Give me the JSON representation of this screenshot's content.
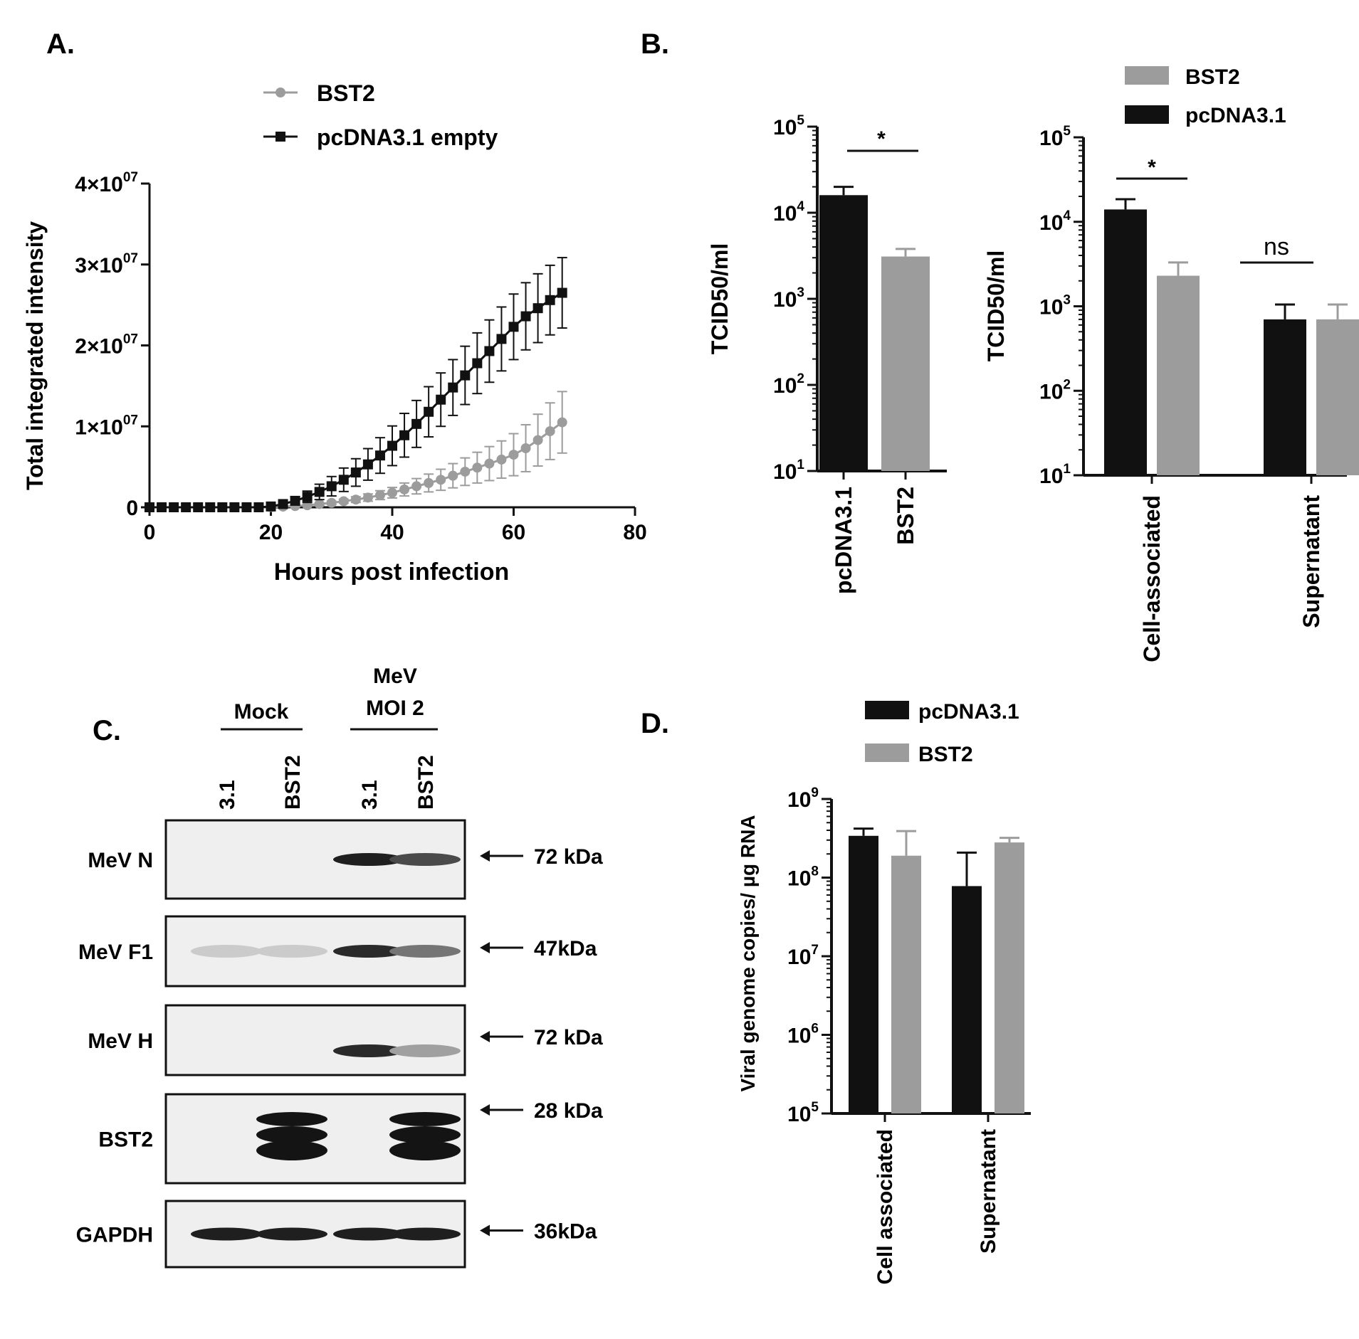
{
  "colors": {
    "black": "#111111",
    "gray": "#9c9c9c",
    "axis": "#111111"
  },
  "panel_labels": {
    "a": "A.",
    "b": "B.",
    "c": "C.",
    "d": "D."
  },
  "chart_data": [
    {
      "panel": "A",
      "type": "line",
      "xlabel": "Hours post infection",
      "ylabel": "Total integrated intensity",
      "xlim": [
        0,
        80
      ],
      "ylim": [
        0,
        40000000
      ],
      "xticks": [
        "0",
        "20",
        "40",
        "60",
        "80"
      ],
      "yticks": [
        {
          "mant": "0",
          "exp": ""
        },
        {
          "mant": "1×10",
          "exp": "07"
        },
        {
          "mant": "2×10",
          "exp": "07"
        },
        {
          "mant": "3×10",
          "exp": "07"
        },
        {
          "mant": "4×10",
          "exp": "07"
        }
      ],
      "x": [
        0,
        2,
        4,
        6,
        8,
        10,
        12,
        14,
        16,
        18,
        20,
        22,
        24,
        26,
        28,
        30,
        32,
        34,
        36,
        38,
        40,
        42,
        44,
        46,
        48,
        50,
        52,
        54,
        56,
        58,
        60,
        62,
        64,
        66,
        68
      ],
      "series": [
        {
          "name": "BST2",
          "color": "#9c9c9c",
          "marker": "circle",
          "values": [
            0,
            0,
            0,
            0,
            0,
            0,
            0,
            0,
            0,
            0,
            20000,
            80000,
            150000,
            250000,
            400000,
            550000,
            750000,
            950000,
            1200000,
            1500000,
            1800000,
            2200000,
            2600000,
            3000000,
            3400000,
            3900000,
            4400000,
            4900000,
            5400000,
            5900000,
            6500000,
            7300000,
            8300000,
            9400000,
            10500000
          ],
          "errors": [
            0,
            0,
            0,
            0,
            0,
            0,
            0,
            0,
            0,
            0,
            20000,
            50000,
            80000,
            100000,
            150000,
            200000,
            250000,
            350000,
            450000,
            550000,
            650000,
            800000,
            950000,
            1100000,
            1300000,
            1500000,
            1700000,
            1900000,
            2100000,
            2300000,
            2600000,
            2900000,
            3200000,
            3500000,
            3800000
          ]
        },
        {
          "name": "pcDNA3.1 empty",
          "color": "#111111",
          "marker": "square",
          "values": [
            0,
            0,
            0,
            0,
            0,
            0,
            0,
            0,
            0,
            0,
            100000,
            400000,
            800000,
            1300000,
            1900000,
            2600000,
            3400000,
            4300000,
            5300000,
            6400000,
            7600000,
            8900000,
            10300000,
            11800000,
            13300000,
            14800000,
            16300000,
            17800000,
            19300000,
            20800000,
            22300000,
            23600000,
            24600000,
            25600000,
            26500000
          ],
          "errors": [
            0,
            0,
            0,
            0,
            0,
            0,
            0,
            0,
            0,
            0,
            100000,
            300000,
            500000,
            700000,
            950000,
            1200000,
            1450000,
            1700000,
            1950000,
            2200000,
            2450000,
            2700000,
            2900000,
            3100000,
            3300000,
            3450000,
            3600000,
            3750000,
            3850000,
            3950000,
            4050000,
            4150000,
            4250000,
            4300000,
            4350000
          ]
        }
      ]
    },
    {
      "panel": "B-left",
      "type": "bar",
      "ylabel": "TCID50/ml",
      "yscale": "log",
      "ylim": [
        10,
        100000
      ],
      "yticks": [
        {
          "mant": "10",
          "exp": "1"
        },
        {
          "mant": "10",
          "exp": "2"
        },
        {
          "mant": "10",
          "exp": "3"
        },
        {
          "mant": "10",
          "exp": "4"
        },
        {
          "mant": "10",
          "exp": "5"
        }
      ],
      "categories": [
        "pcDNA3.1",
        "BST2"
      ],
      "values": [
        16000,
        3100
      ],
      "errors": [
        4000,
        700
      ],
      "bar_colors": [
        "#111111",
        "#9c9c9c"
      ],
      "annotations": [
        {
          "text": "*",
          "between": [
            0,
            1
          ]
        }
      ]
    },
    {
      "panel": "B-right",
      "type": "bar",
      "ylabel": "TCID50/ml",
      "yscale": "log",
      "ylim": [
        10,
        100000
      ],
      "yticks": [
        {
          "mant": "10",
          "exp": "1"
        },
        {
          "mant": "10",
          "exp": "2"
        },
        {
          "mant": "10",
          "exp": "3"
        },
        {
          "mant": "10",
          "exp": "4"
        },
        {
          "mant": "10",
          "exp": "5"
        }
      ],
      "categories": [
        "Cell-associated",
        "Supernatant"
      ],
      "legend": "top",
      "series": [
        {
          "name": "pcDNA3.1",
          "color": "#111111",
          "values": [
            14000,
            700
          ],
          "errors": [
            4500,
            350
          ]
        },
        {
          "name": "BST2",
          "color": "#9c9c9c",
          "values": [
            2300,
            700
          ],
          "errors": [
            1000,
            350
          ]
        }
      ],
      "annotations": [
        {
          "text": "*",
          "group": 0
        },
        {
          "text": "ns",
          "group": 1
        }
      ]
    },
    {
      "panel": "D",
      "type": "bar",
      "ylabel": "Viral genome copies/ µg RNA",
      "yscale": "log",
      "ylim": [
        100000,
        1000000000
      ],
      "yticks": [
        {
          "mant": "10",
          "exp": "5"
        },
        {
          "mant": "10",
          "exp": "6"
        },
        {
          "mant": "10",
          "exp": "7"
        },
        {
          "mant": "10",
          "exp": "8"
        },
        {
          "mant": "10",
          "exp": "9"
        }
      ],
      "categories": [
        "Cell associated",
        "Supernatant"
      ],
      "legend": "top",
      "series": [
        {
          "name": "pcDNA3.1",
          "color": "#111111",
          "values": [
            340000000,
            78000000
          ],
          "errors": [
            80000000,
            130000000
          ]
        },
        {
          "name": "BST2",
          "color": "#9c9c9c",
          "values": [
            190000000,
            280000000
          ],
          "errors": [
            200000000,
            40000000
          ]
        }
      ]
    }
  ],
  "western_blot": {
    "groups": [
      "Mock",
      "MeV",
      "MOI 2"
    ],
    "lanes": [
      "3.1",
      "BST2",
      "3.1",
      "BST2"
    ],
    "blots": [
      {
        "label": "MeV N",
        "size": "72 kDa",
        "bands": [
          0,
          0,
          0.95,
          0.75
        ]
      },
      {
        "label": "MeV F1",
        "size": "47kDa",
        "bands": [
          0.15,
          0.15,
          0.9,
          0.55
        ]
      },
      {
        "label": "MeV H",
        "size": "72 kDa",
        "bands": [
          0,
          0,
          0.9,
          0.35
        ]
      },
      {
        "label": "BST2",
        "size": "28 kDa",
        "bands": [
          0,
          1,
          0,
          1
        ]
      },
      {
        "label": "GAPDH",
        "size": "36kDa",
        "bands": [
          0.95,
          0.95,
          0.95,
          0.95
        ]
      }
    ]
  }
}
